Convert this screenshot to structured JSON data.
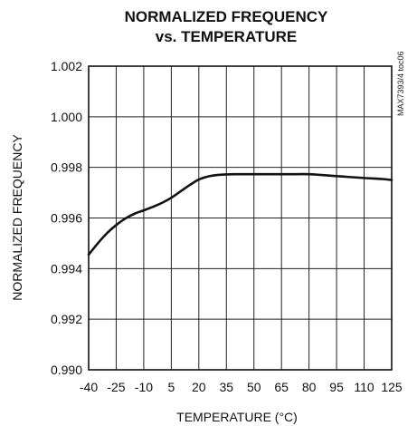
{
  "chart_data": {
    "type": "line",
    "title_lines": [
      "NORMALIZED FREQUENCY",
      "vs. TEMPERATURE"
    ],
    "xlabel": "TEMPERATURE (°C)",
    "ylabel": "NORMALIZED FREQUENCY",
    "side_note": "MAX7393/4 toc06",
    "xlim": [
      -40,
      125
    ],
    "ylim": [
      0.99,
      1.002
    ],
    "x_ticks": [
      -40,
      -25,
      -10,
      5,
      20,
      35,
      50,
      65,
      80,
      95,
      110,
      125
    ],
    "x_tick_labels": [
      "-40",
      "-25",
      "-10",
      "5",
      "20",
      "35",
      "50",
      "65",
      "80",
      "95",
      "110",
      "125"
    ],
    "y_ticks": [
      0.99,
      0.992,
      0.994,
      0.996,
      0.998,
      1.0,
      1.002
    ],
    "y_tick_labels": [
      "0.990",
      "0.992",
      "0.994",
      "0.996",
      "0.998",
      "1.000",
      "1.002"
    ],
    "grid": true,
    "legend": "none",
    "line_color": "#111111",
    "grid_color": "#222222",
    "series": [
      {
        "x": [
          -40,
          -35,
          -30,
          -25,
          -20,
          -15,
          -10,
          -5,
          0,
          5,
          10,
          15,
          20,
          25,
          30,
          35,
          40,
          50,
          60,
          70,
          80,
          90,
          100,
          110,
          120,
          125
        ],
        "y": [
          0.99455,
          0.995,
          0.9954,
          0.99572,
          0.99598,
          0.99617,
          0.9963,
          0.99644,
          0.9966,
          0.9968,
          0.99705,
          0.9973,
          0.99752,
          0.99764,
          0.9977,
          0.99772,
          0.99773,
          0.99773,
          0.99773,
          0.99773,
          0.99773,
          0.99768,
          0.99763,
          0.99758,
          0.99754,
          0.9975
        ]
      }
    ]
  }
}
